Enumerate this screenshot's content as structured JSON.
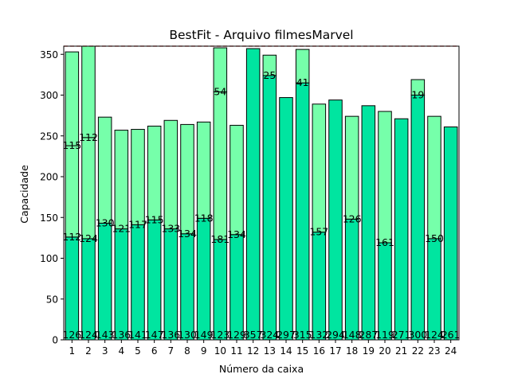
{
  "chart_data": {
    "type": "bar",
    "title": "BestFit - Arquivo filmesMarvel",
    "xlabel": "Número da caixa",
    "ylabel": "Capacidade",
    "ylim": [
      0,
      360
    ],
    "yticks": [
      0,
      50,
      100,
      150,
      200,
      250,
      300,
      350
    ],
    "capacity_line": 360,
    "grid": false,
    "colors": {
      "bottom": "#00e5a0",
      "upper": "#76ffaa",
      "edge": "#000000",
      "capacity_line": "#cc0000"
    },
    "categories": [
      "1",
      "2",
      "3",
      "4",
      "5",
      "6",
      "7",
      "8",
      "9",
      "10",
      "11",
      "12",
      "13",
      "14",
      "15",
      "16",
      "17",
      "18",
      "19",
      "20",
      "21",
      "22",
      "23",
      "24"
    ],
    "bins": [
      {
        "items": [
          126,
          112,
          115
        ]
      },
      {
        "items": [
          124,
          124,
          112
        ]
      },
      {
        "items": [
          143,
          130
        ]
      },
      {
        "items": [
          136,
          121
        ]
      },
      {
        "items": [
          141,
          117
        ]
      },
      {
        "items": [
          147,
          115
        ]
      },
      {
        "items": [
          136,
          133
        ]
      },
      {
        "items": [
          130,
          134
        ]
      },
      {
        "items": [
          149,
          118
        ]
      },
      {
        "items": [
          123,
          181,
          54
        ]
      },
      {
        "items": [
          129,
          134
        ]
      },
      {
        "items": [
          357
        ]
      },
      {
        "items": [
          324,
          25
        ]
      },
      {
        "items": [
          297
        ]
      },
      {
        "items": [
          315,
          41
        ]
      },
      {
        "items": [
          132,
          157
        ]
      },
      {
        "items": [
          294
        ]
      },
      {
        "items": [
          148,
          126
        ]
      },
      {
        "items": [
          287
        ]
      },
      {
        "items": [
          119,
          161
        ]
      },
      {
        "items": [
          271
        ]
      },
      {
        "items": [
          300,
          19
        ]
      },
      {
        "items": [
          124,
          150
        ]
      },
      {
        "items": [
          261
        ]
      }
    ]
  }
}
